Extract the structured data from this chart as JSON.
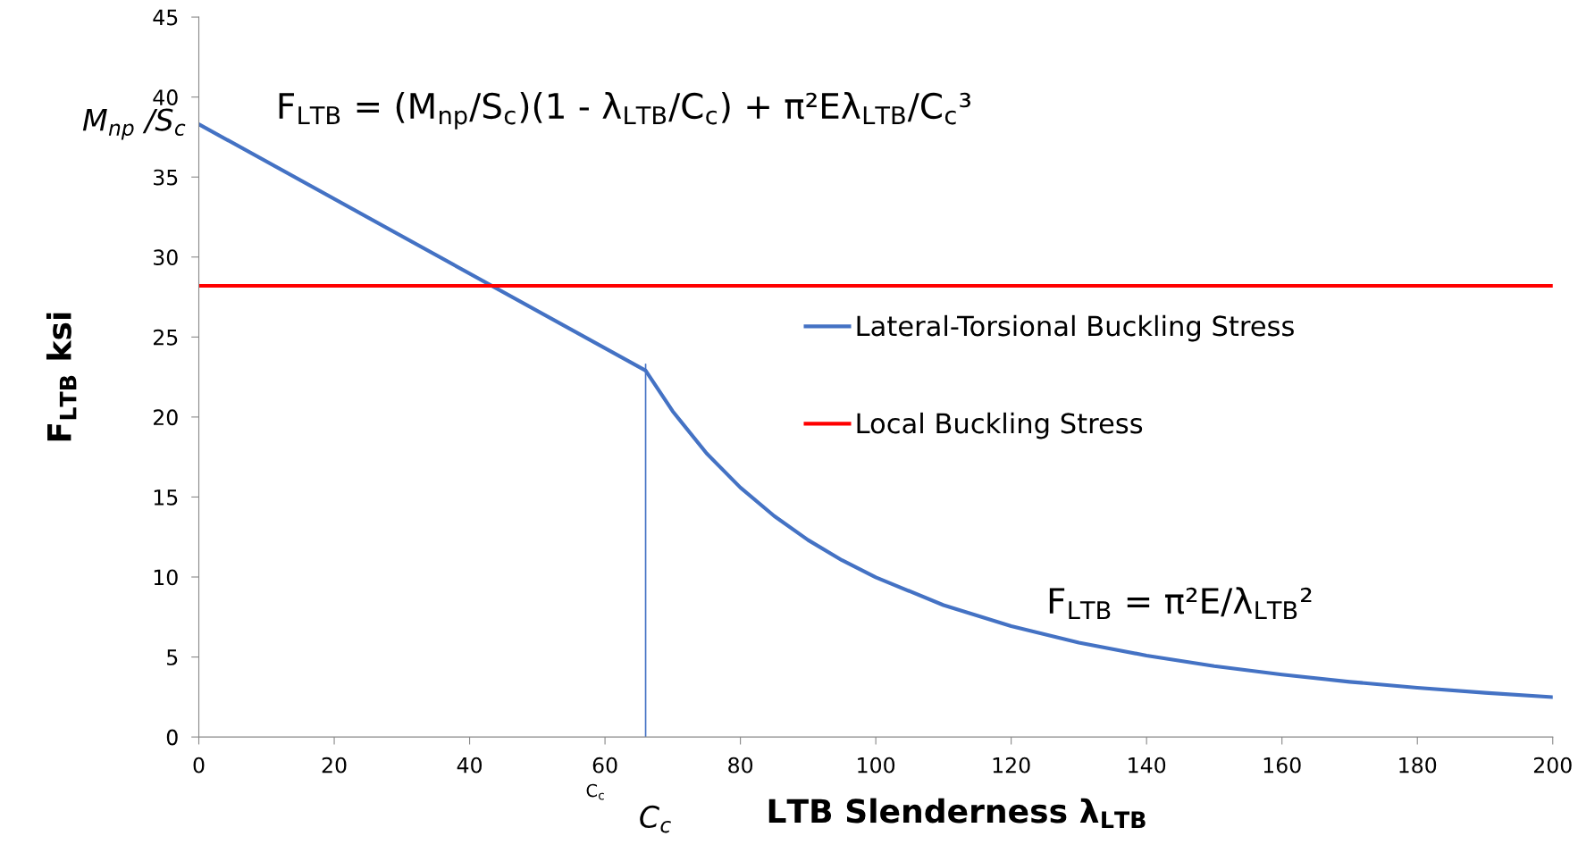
{
  "chart_data": {
    "type": "line",
    "xlabel": "LTB Slenderness λ$_{LTB}$",
    "ylabel": "F$_{LTB}$ ksi",
    "xlim": [
      0,
      200
    ],
    "xticks": [
      0,
      20,
      40,
      60,
      80,
      100,
      120,
      140,
      160,
      180,
      200
    ],
    "ylim": [
      0,
      45
    ],
    "yticks": [
      0,
      5,
      10,
      15,
      20,
      25,
      30,
      35,
      40,
      45
    ],
    "grid": false,
    "legend": "right",
    "marker": "none",
    "line_style": "solid",
    "series": [
      {
        "name": "Lateral-Torsional Buckling Stress",
        "color": "#4472c4",
        "x": [
          0,
          66,
          70,
          75,
          80,
          85,
          90,
          95,
          100,
          110,
          120,
          130,
          140,
          150,
          160,
          170,
          180,
          190,
          200
        ],
        "values": [
          38.3,
          22.9,
          20.36,
          17.73,
          15.59,
          13.81,
          12.31,
          11.05,
          9.98,
          8.24,
          6.93,
          5.9,
          5.09,
          4.43,
          3.9,
          3.45,
          3.08,
          2.76,
          2.49
        ]
      },
      {
        "name": "Local Buckling Stress",
        "color": "#ff0000",
        "x": [
          0,
          200
        ],
        "values": [
          28.2,
          28.2
        ]
      },
      {
        "color": "#4472c4",
        "x": [
          66,
          66
        ],
        "values": [
          0,
          23.3
        ]
      }
    ],
    "annotations": [
      "F$_{LTB}$ = (M$_{np}$/S$_{c}$)(1 - λ$_{LTB}$/C$_{c}$) + π²Eλ$_{LTB}$/C$_{c}$³",
      "F$_{LTB}$ = π²E/λ$_{LTB}$²",
      {
        "text": "M$_{np}$ /S$_{c}$",
        "x": 0,
        "y": 38.3
      },
      {
        "text": "C$_{c}$",
        "x": 66,
        "y": 0
      },
      "C$_{c}$"
    ]
  }
}
